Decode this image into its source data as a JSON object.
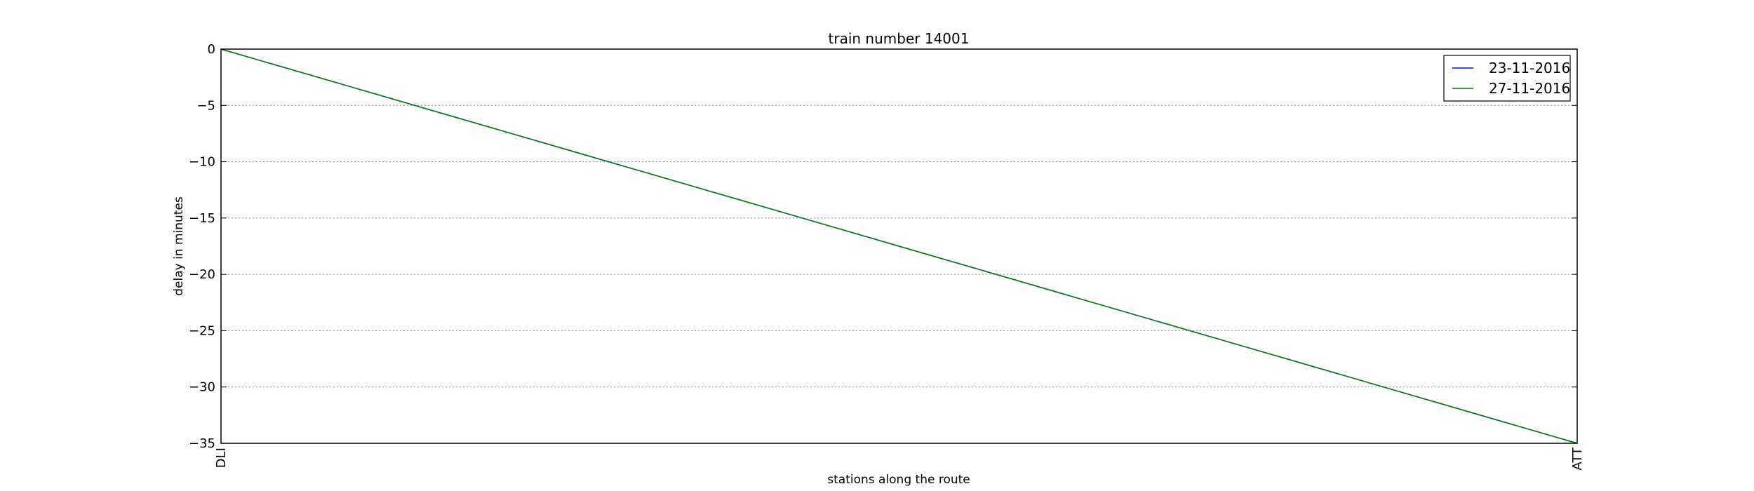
{
  "chart_data": {
    "type": "line",
    "title": "train number 14001",
    "xlabel": "stations along the route",
    "ylabel": "delay in minutes",
    "categories": [
      "DLI",
      "ATT"
    ],
    "ylim": [
      -35,
      0
    ],
    "yticks": [
      0,
      -5,
      -10,
      -15,
      -20,
      -25,
      -30,
      -35
    ],
    "ytick_labels": [
      "0",
      "−5",
      "−10",
      "−15",
      "−20",
      "−25",
      "−30",
      "−35"
    ],
    "grid": "horizontal dotted",
    "legend_position": "top-right",
    "series": [
      {
        "name": "23-11-2016",
        "color": "#0000ff",
        "values": [
          0,
          -35
        ]
      },
      {
        "name": "27-11-2016",
        "color": "#008000",
        "values": [
          0,
          -35
        ]
      }
    ]
  }
}
